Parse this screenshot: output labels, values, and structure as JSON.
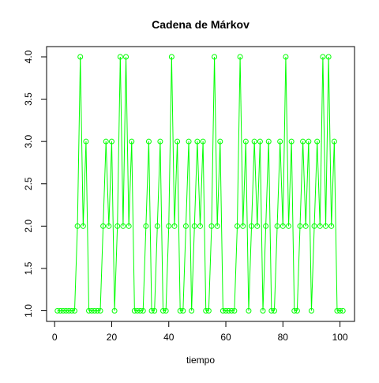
{
  "chart_data": {
    "type": "line",
    "title": "Cadena de Márkov",
    "xlabel": "tiempo",
    "ylabel": "",
    "xlim": [
      1,
      101
    ],
    "ylim": [
      1.0,
      4.0
    ],
    "x_ticks": [
      "0",
      "20",
      "40",
      "60",
      "80",
      "100"
    ],
    "y_ticks": [
      "1.0",
      "1.5",
      "2.0",
      "2.5",
      "3.0",
      "3.5",
      "4.0"
    ],
    "grid": false,
    "legend": "none",
    "line_color": "#00ff00",
    "markers": "open-circle",
    "x": [
      1,
      2,
      3,
      4,
      5,
      6,
      7,
      8,
      9,
      10,
      11,
      12,
      13,
      14,
      15,
      16,
      17,
      18,
      19,
      20,
      21,
      22,
      23,
      24,
      25,
      26,
      27,
      28,
      29,
      30,
      31,
      32,
      33,
      34,
      35,
      36,
      37,
      38,
      39,
      40,
      41,
      42,
      43,
      44,
      45,
      46,
      47,
      48,
      49,
      50,
      51,
      52,
      53,
      54,
      55,
      56,
      57,
      58,
      59,
      60,
      61,
      62,
      63,
      64,
      65,
      66,
      67,
      68,
      69,
      70,
      71,
      72,
      73,
      74,
      75,
      76,
      77,
      78,
      79,
      80,
      81,
      82,
      83,
      84,
      85,
      86,
      87,
      88,
      89,
      90,
      91,
      92,
      93,
      94,
      95,
      96,
      97,
      98,
      99,
      100,
      101
    ],
    "values": [
      1,
      1,
      1,
      1,
      1,
      1,
      1,
      2,
      4,
      2,
      3,
      1,
      1,
      1,
      1,
      1,
      2,
      3,
      2,
      3,
      1,
      2,
      4,
      2,
      4,
      2,
      3,
      1,
      1,
      1,
      1,
      2,
      3,
      1,
      1,
      2,
      3,
      1,
      1,
      2,
      4,
      2,
      3,
      1,
      1,
      2,
      3,
      1,
      2,
      3,
      2,
      3,
      1,
      1,
      2,
      4,
      2,
      3,
      1,
      1,
      1,
      1,
      1,
      2,
      4,
      2,
      3,
      1,
      2,
      3,
      2,
      3,
      1,
      2,
      3,
      1,
      1,
      2,
      3,
      2,
      4,
      2,
      3,
      1,
      1,
      2,
      3,
      2,
      3,
      1,
      2,
      3,
      2,
      4,
      2,
      4,
      2,
      3,
      1,
      1,
      1
    ]
  }
}
